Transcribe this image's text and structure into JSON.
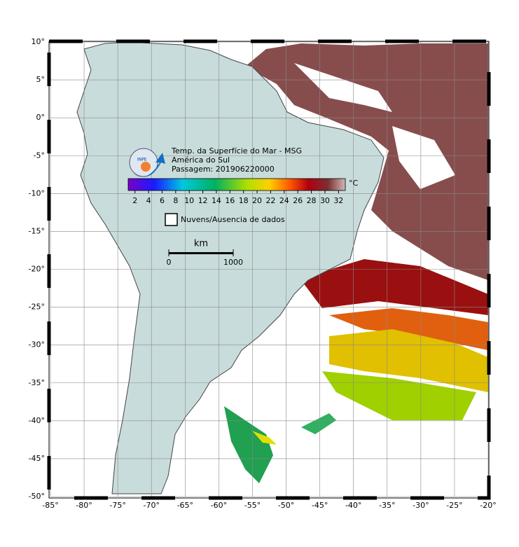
{
  "map": {
    "title_lines": [
      "Temp. da Superfície do Mar - MSG",
      "América do Sul",
      "Passagem: 201906220000"
    ],
    "logo_text": "INPE",
    "colorbar": {
      "unit": "°C",
      "range": [
        1,
        33
      ],
      "ticks": [
        2,
        4,
        6,
        8,
        10,
        12,
        14,
        16,
        18,
        20,
        22,
        24,
        26,
        28,
        30,
        32
      ]
    },
    "legend": "Nuvens/Ausencia de dados",
    "scale_bar": {
      "unit": "km",
      "ticks": [
        0,
        1000
      ]
    },
    "lonlim": [
      -85,
      -20
    ],
    "latlim": [
      -50,
      10
    ],
    "lon_ticks": [
      {
        "value": -85,
        "label": "-85°"
      },
      {
        "value": -80,
        "label": "-80°"
      },
      {
        "value": -75,
        "label": "-75°"
      },
      {
        "value": -70,
        "label": "-70°"
      },
      {
        "value": -65,
        "label": "-65°"
      },
      {
        "value": -60,
        "label": "-60°"
      },
      {
        "value": -55,
        "label": "-55°"
      },
      {
        "value": -50,
        "label": "-50°"
      },
      {
        "value": -45,
        "label": "-45°"
      },
      {
        "value": -40,
        "label": "-40°"
      },
      {
        "value": -35,
        "label": "-35°"
      },
      {
        "value": -30,
        "label": "-30°"
      },
      {
        "value": -25,
        "label": "-25°"
      },
      {
        "value": -20,
        "label": "-20°"
      }
    ],
    "lat_ticks": [
      {
        "value": 10,
        "label": "10°"
      },
      {
        "value": 5,
        "label": "5°"
      },
      {
        "value": 0,
        "label": "0°"
      },
      {
        "value": -5,
        "label": "-5°"
      },
      {
        "value": -10,
        "label": "-10°"
      },
      {
        "value": -15,
        "label": "-15°"
      },
      {
        "value": -20,
        "label": "-20°"
      },
      {
        "value": -25,
        "label": "-25°"
      },
      {
        "value": -30,
        "label": "-30°"
      },
      {
        "value": -35,
        "label": "-35°"
      },
      {
        "value": -40,
        "label": "-40°"
      },
      {
        "value": -45,
        "label": "-45°"
      },
      {
        "value": -50,
        "label": "-50°"
      }
    ]
  }
}
